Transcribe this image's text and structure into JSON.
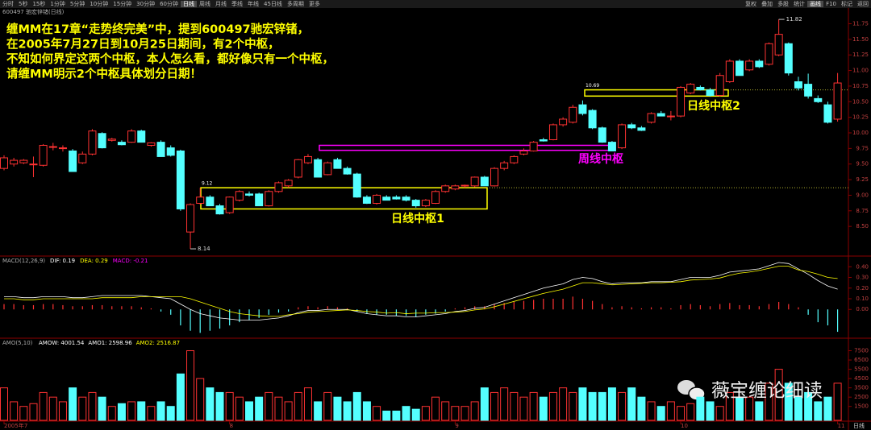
{
  "toolbar": {
    "periods": [
      "分时",
      "5秒",
      "15秒",
      "1分钟",
      "5分钟",
      "10分钟",
      "15分钟",
      "30分钟",
      "60分钟",
      "日线",
      "周线",
      "月线",
      "季线",
      "年线",
      "45日线",
      "多周期",
      "更多"
    ],
    "tools": [
      "复权",
      "叠加",
      "多股",
      "统计",
      "画线",
      "F10",
      "标记",
      "返回"
    ]
  },
  "annotation": [
    "缠MM在17章“走势终完美”中，提到600497驰宏锌锗，",
    "在2005年7月27日到10月25日期间，有2个中枢，",
    "不知如何界定这两个中枢，本人怎么看，都好像只有一个中枢，",
    "请缠MM明示2个中枢具体划分日期！"
  ],
  "watermark": "薇宝缠论细读",
  "period_label": "日线",
  "chart_data": [
    {
      "type": "candlestick",
      "title": "600497 驰宏锌锗(日线)",
      "up_color": "#ff3232",
      "down_color": "#54ffff",
      "categories": [
        "2005年7",
        null,
        null,
        null,
        null,
        null,
        null,
        null,
        null,
        null,
        null,
        null,
        null,
        null,
        null,
        null,
        null,
        null,
        null,
        null,
        null,
        null,
        null,
        "8",
        null,
        null,
        null,
        null,
        null,
        null,
        null,
        null,
        null,
        null,
        null,
        null,
        null,
        null,
        null,
        null,
        null,
        null,
        null,
        null,
        null,
        null,
        "9",
        null,
        null,
        null,
        null,
        null,
        null,
        null,
        null,
        null,
        null,
        null,
        null,
        null,
        null,
        null,
        null,
        null,
        null,
        null,
        null,
        null,
        null,
        "10",
        null,
        null,
        null,
        null,
        null,
        null,
        null,
        null,
        null,
        null,
        null,
        null,
        null,
        null,
        null,
        "11"
      ],
      "ohlc": [
        [
          9.43,
          9.64,
          9.4,
          9.6
        ],
        [
          9.5,
          9.6,
          9.46,
          9.56
        ],
        [
          9.52,
          9.58,
          9.5,
          9.56
        ],
        [
          9.5,
          9.62,
          9.29,
          9.5
        ],
        [
          9.48,
          9.82,
          9.46,
          9.8
        ],
        [
          9.78,
          9.84,
          9.72,
          9.78
        ],
        [
          9.76,
          9.8,
          9.7,
          9.76
        ],
        [
          9.71,
          9.74,
          9.38,
          9.38
        ],
        [
          9.52,
          9.7,
          9.5,
          9.66
        ],
        [
          9.66,
          10.06,
          9.64,
          10.03
        ],
        [
          9.99,
          10.01,
          9.75,
          9.76
        ],
        [
          9.88,
          9.92,
          9.86,
          9.9
        ],
        [
          9.85,
          9.88,
          9.8,
          9.81
        ],
        [
          9.85,
          10.06,
          9.84,
          10.03
        ],
        [
          10.03,
          10.05,
          9.85,
          9.85
        ],
        [
          9.8,
          9.85,
          9.78,
          9.84
        ],
        [
          9.85,
          9.88,
          9.62,
          9.62
        ],
        [
          9.76,
          9.8,
          9.62,
          9.64
        ],
        [
          9.71,
          9.73,
          8.75,
          8.78
        ],
        [
          8.41,
          8.87,
          8.14,
          8.85
        ],
        [
          8.87,
          9.12,
          8.85,
          8.97
        ],
        [
          8.97,
          9.0,
          8.83,
          8.83
        ],
        [
          8.83,
          8.86,
          8.69,
          8.7
        ],
        [
          8.72,
          8.98,
          8.7,
          8.97
        ],
        [
          8.92,
          9.08,
          8.9,
          9.06
        ],
        [
          9.02,
          9.06,
          8.98,
          9.0
        ],
        [
          9.02,
          9.04,
          8.83,
          8.83
        ],
        [
          8.83,
          9.08,
          8.82,
          9.06
        ],
        [
          9.06,
          9.22,
          9.04,
          9.2
        ],
        [
          9.15,
          9.26,
          9.12,
          9.24
        ],
        [
          9.29,
          9.58,
          9.27,
          9.57
        ],
        [
          9.52,
          9.66,
          9.5,
          9.62
        ],
        [
          9.57,
          9.6,
          9.29,
          9.29
        ],
        [
          9.33,
          9.54,
          9.32,
          9.52
        ],
        [
          9.57,
          9.6,
          9.43,
          9.43
        ],
        [
          9.43,
          9.46,
          9.33,
          9.34
        ],
        [
          9.34,
          9.36,
          8.96,
          8.97
        ],
        [
          8.97,
          9.0,
          8.86,
          8.87
        ],
        [
          8.87,
          9.02,
          8.85,
          9.0
        ],
        [
          8.97,
          9.0,
          8.92,
          8.92
        ],
        [
          8.97,
          9.0,
          8.93,
          8.94
        ],
        [
          8.97,
          9.0,
          8.9,
          8.92
        ],
        [
          8.92,
          8.94,
          8.8,
          8.83
        ],
        [
          8.83,
          8.94,
          8.81,
          8.92
        ],
        [
          8.87,
          9.08,
          8.86,
          9.06
        ],
        [
          9.06,
          9.17,
          9.04,
          9.15
        ],
        [
          9.1,
          9.17,
          9.08,
          9.15
        ],
        [
          9.15,
          9.17,
          9.12,
          9.16
        ],
        [
          9.15,
          9.3,
          9.13,
          9.29
        ],
        [
          9.29,
          9.31,
          9.15,
          9.15
        ],
        [
          9.15,
          9.45,
          9.14,
          9.43
        ],
        [
          9.43,
          9.55,
          9.4,
          9.52
        ],
        [
          9.52,
          9.64,
          9.5,
          9.62
        ],
        [
          9.66,
          9.75,
          9.64,
          9.71
        ],
        [
          9.71,
          9.87,
          9.7,
          9.85
        ],
        [
          9.89,
          9.92,
          9.86,
          9.87
        ],
        [
          9.89,
          10.15,
          9.88,
          10.13
        ],
        [
          10.13,
          10.25,
          10.1,
          10.22
        ],
        [
          10.17,
          10.45,
          10.15,
          10.41
        ],
        [
          10.45,
          10.52,
          10.28,
          10.31
        ],
        [
          10.36,
          10.38,
          10.06,
          10.08
        ],
        [
          10.08,
          10.1,
          9.84,
          9.85
        ],
        [
          9.85,
          9.87,
          9.71,
          9.71
        ],
        [
          9.76,
          10.15,
          9.74,
          10.13
        ],
        [
          10.13,
          10.16,
          10.06,
          10.08
        ],
        [
          10.08,
          10.11,
          10.03,
          10.04
        ],
        [
          10.17,
          10.33,
          10.15,
          10.31
        ],
        [
          10.31,
          10.35,
          10.27,
          10.27
        ],
        [
          10.27,
          10.35,
          10.2,
          10.27
        ],
        [
          10.27,
          10.75,
          10.25,
          10.73
        ],
        [
          10.64,
          10.8,
          10.62,
          10.78
        ],
        [
          10.73,
          10.76,
          10.68,
          10.69
        ],
        [
          10.69,
          10.72,
          10.58,
          10.6
        ],
        [
          10.6,
          10.96,
          10.58,
          10.92
        ],
        [
          10.82,
          11.18,
          10.8,
          11.15
        ],
        [
          11.15,
          11.18,
          10.92,
          10.92
        ],
        [
          11.01,
          11.18,
          10.99,
          11.15
        ],
        [
          11.15,
          11.18,
          11.04,
          11.06
        ],
        [
          11.1,
          11.45,
          11.08,
          11.43
        ],
        [
          11.25,
          11.82,
          11.23,
          11.58
        ],
        [
          11.43,
          11.45,
          10.92,
          10.96
        ],
        [
          10.82,
          10.9,
          10.68,
          10.72
        ],
        [
          10.78,
          10.95,
          10.55,
          10.59
        ],
        [
          10.55,
          10.6,
          10.48,
          10.5
        ],
        [
          10.45,
          10.5,
          10.15,
          10.17
        ],
        [
          10.22,
          10.96,
          10.18,
          10.8
        ]
      ],
      "ylim": [
        8.05,
        11.95
      ],
      "yticks": [
        {
          "value": 8.5,
          "label": "8.50"
        },
        {
          "value": 8.75,
          "label": "8.75"
        },
        {
          "value": 9,
          "label": "9.00"
        },
        {
          "value": 9.25,
          "label": "9.25"
        },
        {
          "value": 9.5,
          "label": "9.50"
        },
        {
          "value": 9.75,
          "label": "9.75"
        },
        {
          "value": 10,
          "label": "10.00"
        },
        {
          "value": 10.25,
          "label": "10.25"
        },
        {
          "value": 10.5,
          "label": "10.50"
        },
        {
          "value": 10.75,
          "label": "10.75"
        },
        {
          "value": 11,
          "label": "11.00"
        },
        {
          "value": 11.25,
          "label": "11.25"
        },
        {
          "value": 11.5,
          "label": "11.50"
        },
        {
          "value": 11.75,
          "label": "11.75"
        }
      ],
      "levels": [
        9.12,
        10.69
      ],
      "extremes": [
        8.14,
        11.82
      ],
      "zones": [
        {
          "label": "日线中枢1",
          "color": "#ffff00",
          "range": [
            8.78,
            9.12
          ]
        },
        {
          "label": "周线中枢",
          "color": "#ff00ff",
          "range": [
            9.72,
            9.8
          ]
        },
        {
          "label": "日线中枢2",
          "color": "#ffff00",
          "range": [
            10.59,
            10.69
          ]
        }
      ]
    },
    {
      "type": "macd",
      "title": "MACD(12,26,9)",
      "up_color": "#ff3232",
      "down_color": "#54ffff",
      "ylim": [
        -0.27,
        0.47
      ],
      "yticks": [
        {
          "value": 0,
          "label": "0.00"
        },
        {
          "value": 0.1,
          "label": "0.10"
        },
        {
          "value": 0.2,
          "label": "0.20"
        },
        {
          "value": 0.3,
          "label": "0.30"
        },
        {
          "value": 0.4,
          "label": "0.40"
        }
      ],
      "series": [
        {
          "name": "DIF: 0.19",
          "color": "#ffffff",
          "values": [
            0.12,
            0.12,
            0.11,
            0.11,
            0.12,
            0.12,
            0.12,
            0.11,
            0.11,
            0.12,
            0.13,
            0.13,
            0.13,
            0.13,
            0.13,
            0.12,
            0.11,
            0.1,
            0.05,
            0.0,
            -0.04,
            -0.06,
            -0.08,
            -0.09,
            -0.1,
            -0.1,
            -0.1,
            -0.09,
            -0.08,
            -0.06,
            -0.03,
            -0.01,
            -0.01,
            0.0,
            0.0,
            0.0,
            -0.02,
            -0.04,
            -0.05,
            -0.06,
            -0.06,
            -0.07,
            -0.07,
            -0.06,
            -0.05,
            -0.04,
            -0.02,
            -0.01,
            0.01,
            0.02,
            0.05,
            0.08,
            0.11,
            0.14,
            0.17,
            0.2,
            0.22,
            0.24,
            0.28,
            0.3,
            0.29,
            0.26,
            0.24,
            0.25,
            0.25,
            0.25,
            0.26,
            0.26,
            0.26,
            0.28,
            0.3,
            0.3,
            0.3,
            0.32,
            0.35,
            0.36,
            0.37,
            0.38,
            0.41,
            0.44,
            0.43,
            0.38,
            0.33,
            0.27,
            0.22,
            0.19
          ]
        },
        {
          "name": "DEA: 0.29",
          "color": "#ffff00",
          "values": [
            0.1,
            0.1,
            0.09,
            0.09,
            0.1,
            0.1,
            0.1,
            0.1,
            0.1,
            0.1,
            0.11,
            0.11,
            0.11,
            0.11,
            0.12,
            0.12,
            0.12,
            0.12,
            0.12,
            0.1,
            0.07,
            0.04,
            0.01,
            -0.02,
            -0.04,
            -0.05,
            -0.06,
            -0.065,
            -0.065,
            -0.05,
            -0.04,
            -0.025,
            -0.02,
            -0.015,
            -0.01,
            -0.005,
            -0.01,
            -0.02,
            -0.025,
            -0.035,
            -0.03,
            -0.04,
            -0.035,
            -0.035,
            -0.03,
            -0.03,
            -0.025,
            -0.02,
            -0.005,
            0.005,
            0.025,
            0.05,
            0.075,
            0.1,
            0.125,
            0.15,
            0.17,
            0.19,
            0.22,
            0.25,
            0.25,
            0.24,
            0.23,
            0.235,
            0.24,
            0.245,
            0.25,
            0.25,
            0.255,
            0.26,
            0.275,
            0.28,
            0.285,
            0.295,
            0.32,
            0.34,
            0.35,
            0.365,
            0.385,
            0.405,
            0.405,
            0.37,
            0.355,
            0.33,
            0.3,
            0.29
          ]
        },
        {
          "name": "MACD: -0.21",
          "color": "#ff00ff",
          "values": [
            0.05,
            0.05,
            0.04,
            0.04,
            0.05,
            0.05,
            0.04,
            0.03,
            0.03,
            0.04,
            0.04,
            0.03,
            0.03,
            0.03,
            0.02,
            0.01,
            -0.02,
            -0.05,
            -0.15,
            -0.2,
            -0.22,
            -0.2,
            -0.18,
            -0.15,
            -0.12,
            -0.1,
            -0.08,
            -0.05,
            -0.03,
            -0.02,
            0.02,
            0.03,
            0.02,
            0.03,
            0.02,
            0.01,
            -0.02,
            -0.04,
            -0.05,
            -0.05,
            -0.06,
            -0.06,
            -0.07,
            -0.05,
            -0.04,
            -0.02,
            0.01,
            0.02,
            0.03,
            0.03,
            0.05,
            0.06,
            0.07,
            0.08,
            0.09,
            0.1,
            0.1,
            0.1,
            0.12,
            0.1,
            0.08,
            0.05,
            0.02,
            0.03,
            0.02,
            0.01,
            0.02,
            0.02,
            0.01,
            0.04,
            0.05,
            0.04,
            0.03,
            0.05,
            0.06,
            0.04,
            0.04,
            0.03,
            0.05,
            0.07,
            0.05,
            0.02,
            -0.05,
            -0.12,
            -0.15,
            -0.21
          ]
        }
      ]
    },
    {
      "type": "bar",
      "title": "AMO(5,10)",
      "ylim": [
        0,
        8500
      ],
      "yticks": [
        1500,
        2500,
        3500,
        4500,
        5500,
        6500,
        7500
      ],
      "series": [
        {
          "name": "AMOW: 4001.54",
          "color": "#ffffff",
          "values": [
            3500,
            2000,
            1500,
            1800,
            3000,
            2500,
            2000,
            3500,
            2500,
            3000,
            2500,
            1500,
            1800,
            2000,
            2000,
            1500,
            2000,
            1500,
            5000,
            7500,
            4500,
            3500,
            3000,
            3000,
            2500,
            2000,
            2500,
            3000,
            2500,
            2000,
            3000,
            3500,
            2000,
            3000,
            2500,
            2000,
            3000,
            2000,
            1500,
            1000,
            1000,
            1500,
            1200,
            1500,
            2500,
            2000,
            1500,
            1500,
            2000,
            3500,
            3000,
            3500,
            3000,
            2500,
            3000,
            2500,
            3000,
            3500,
            3000,
            3500,
            3000,
            3000,
            3500,
            3000,
            3500,
            2500,
            2000,
            1500,
            2000,
            1500,
            1800,
            2500,
            2000,
            1500,
            3000,
            2500,
            2500,
            2000,
            4000,
            5500,
            4000,
            2500,
            3000,
            2000,
            2500,
            4000
          ]
        }
      ],
      "indicators": [
        {
          "name": "AMO1: 2598.96",
          "color": "#ffffff"
        },
        {
          "name": "AMO2: 2516.87",
          "color": "#ffff00"
        }
      ]
    }
  ]
}
